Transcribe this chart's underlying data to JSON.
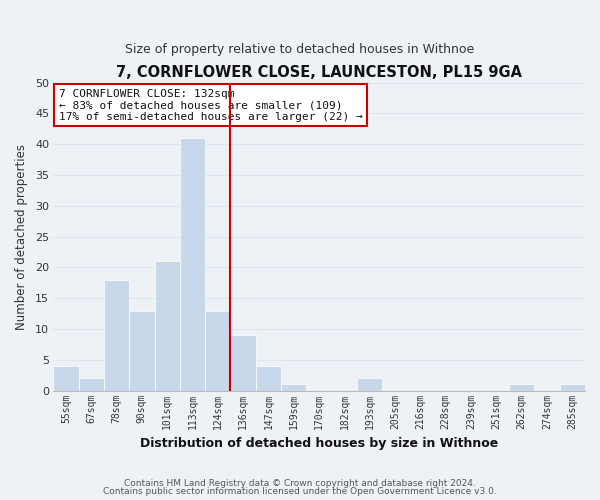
{
  "title": "7, CORNFLOWER CLOSE, LAUNCESTON, PL15 9GA",
  "subtitle": "Size of property relative to detached houses in Withnoe",
  "xlabel": "Distribution of detached houses by size in Withnoe",
  "ylabel": "Number of detached properties",
  "bar_color": "#c8d8ea",
  "bar_edge_color": "#ffffff",
  "bin_labels": [
    "55sqm",
    "67sqm",
    "78sqm",
    "90sqm",
    "101sqm",
    "113sqm",
    "124sqm",
    "136sqm",
    "147sqm",
    "159sqm",
    "170sqm",
    "182sqm",
    "193sqm",
    "205sqm",
    "216sqm",
    "228sqm",
    "239sqm",
    "251sqm",
    "262sqm",
    "274sqm",
    "285sqm"
  ],
  "bar_heights": [
    4,
    2,
    18,
    13,
    21,
    41,
    13,
    9,
    4,
    1,
    0,
    0,
    2,
    0,
    0,
    0,
    0,
    0,
    1,
    0,
    1
  ],
  "vline_color": "#cc0000",
  "vline_bar_index": 6.5,
  "ylim": [
    0,
    50
  ],
  "yticks": [
    0,
    5,
    10,
    15,
    20,
    25,
    30,
    35,
    40,
    45,
    50
  ],
  "annotation_title": "7 CORNFLOWER CLOSE: 132sqm",
  "annotation_line1": "← 83% of detached houses are smaller (109)",
  "annotation_line2": "17% of semi-detached houses are larger (22) →",
  "annotation_box_color": "#ffffff",
  "annotation_box_edge": "#cc0000",
  "grid_color": "#dde6ee",
  "background_color": "#eef2f6",
  "plot_bg_color": "#eef2f6",
  "footer1": "Contains HM Land Registry data © Crown copyright and database right 2024.",
  "footer2": "Contains public sector information licensed under the Open Government Licence v3.0."
}
